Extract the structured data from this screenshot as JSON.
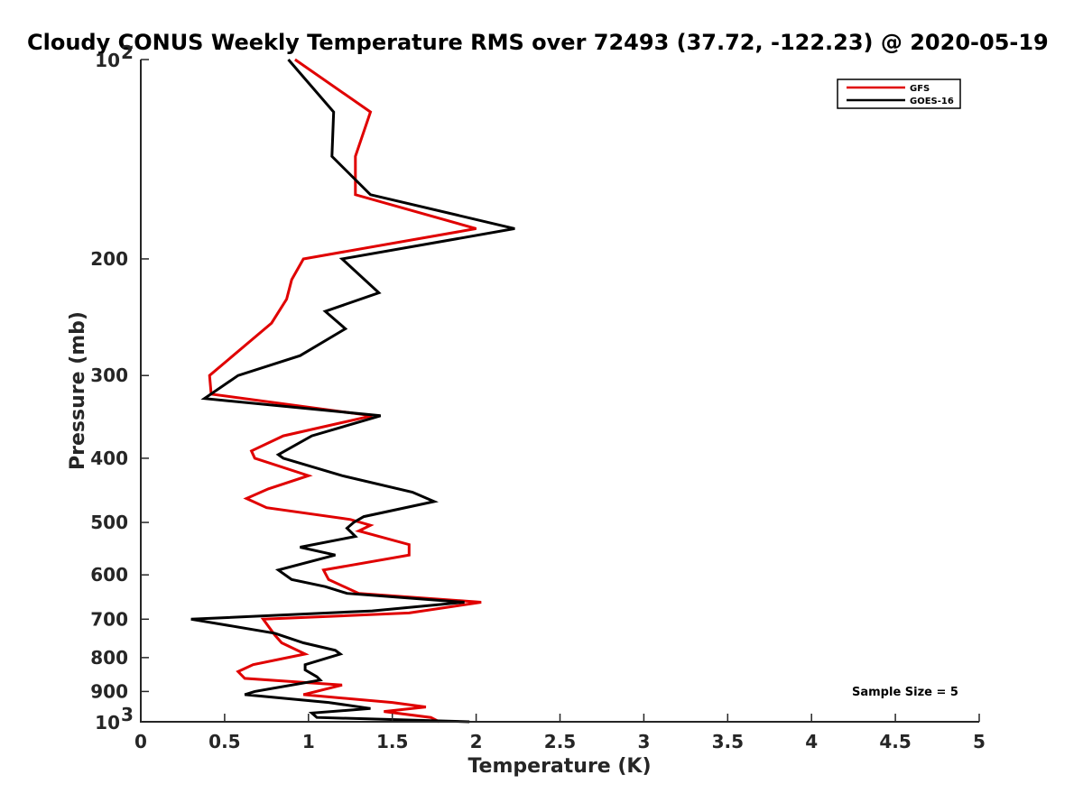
{
  "chart_data": {
    "type": "line",
    "title": "Cloudy CONUS Weekly Temperature RMS over 72493 (37.72, -122.23) @ 2020-05-19",
    "xlabel": "Temperature (K)",
    "ylabel": "Pressure (mb)",
    "xlim": [
      0,
      5
    ],
    "ylim": [
      100,
      1000
    ],
    "y_scale": "log",
    "y_reversed": true,
    "grid": false,
    "legend_position": "top-right",
    "x_ticks": [
      {
        "value": 0,
        "label": "0"
      },
      {
        "value": 0.5,
        "label": "0.5"
      },
      {
        "value": 1,
        "label": "1"
      },
      {
        "value": 1.5,
        "label": "1.5"
      },
      {
        "value": 2,
        "label": "2"
      },
      {
        "value": 2.5,
        "label": "2.5"
      },
      {
        "value": 3,
        "label": "3"
      },
      {
        "value": 3.5,
        "label": "3.5"
      },
      {
        "value": 4,
        "label": "4"
      },
      {
        "value": 4.5,
        "label": "4.5"
      },
      {
        "value": 5,
        "label": "5"
      }
    ],
    "y_ticks": [
      {
        "value": 100,
        "label": "10",
        "exp": "2"
      },
      {
        "value": 200,
        "label": "200"
      },
      {
        "value": 300,
        "label": "300"
      },
      {
        "value": 400,
        "label": "400"
      },
      {
        "value": 500,
        "label": "500"
      },
      {
        "value": 600,
        "label": "600"
      },
      {
        "value": 700,
        "label": "700"
      },
      {
        "value": 800,
        "label": "800"
      },
      {
        "value": 900,
        "label": "900"
      },
      {
        "value": 1000,
        "label": "10",
        "exp": "3"
      }
    ],
    "annotation": "Sample Size = 5",
    "series": [
      {
        "name": "GFS",
        "color": "#e00000",
        "points": [
          [
            0.92,
            100
          ],
          [
            1.37,
            120
          ],
          [
            1.28,
            140
          ],
          [
            1.28,
            160
          ],
          [
            2.0,
            180
          ],
          [
            0.97,
            200
          ],
          [
            0.9,
            215
          ],
          [
            0.87,
            230
          ],
          [
            0.78,
            250
          ],
          [
            0.41,
            300
          ],
          [
            0.42,
            320
          ],
          [
            1.38,
            345
          ],
          [
            0.85,
            370
          ],
          [
            0.66,
            390
          ],
          [
            0.68,
            400
          ],
          [
            1.0,
            425
          ],
          [
            0.76,
            445
          ],
          [
            0.63,
            460
          ],
          [
            0.75,
            475
          ],
          [
            1.25,
            495
          ],
          [
            1.37,
            505
          ],
          [
            1.3,
            515
          ],
          [
            1.6,
            540
          ],
          [
            1.6,
            560
          ],
          [
            1.09,
            590
          ],
          [
            1.12,
            610
          ],
          [
            1.3,
            640
          ],
          [
            2.03,
            660
          ],
          [
            1.6,
            685
          ],
          [
            0.73,
            700
          ],
          [
            0.8,
            740
          ],
          [
            0.84,
            760
          ],
          [
            0.98,
            790
          ],
          [
            0.67,
            820
          ],
          [
            0.58,
            840
          ],
          [
            0.62,
            860
          ],
          [
            1.2,
            880
          ],
          [
            0.97,
            910
          ],
          [
            1.5,
            935
          ],
          [
            1.7,
            950
          ],
          [
            1.45,
            965
          ],
          [
            1.73,
            985
          ],
          [
            1.78,
            1000
          ]
        ]
      },
      {
        "name": "GOES-16",
        "color": "#000000",
        "points": [
          [
            0.88,
            100
          ],
          [
            1.15,
            120
          ],
          [
            1.14,
            140
          ],
          [
            1.37,
            160
          ],
          [
            2.23,
            180
          ],
          [
            1.2,
            200
          ],
          [
            1.42,
            225
          ],
          [
            1.1,
            240
          ],
          [
            1.22,
            255
          ],
          [
            0.95,
            280
          ],
          [
            0.58,
            300
          ],
          [
            0.38,
            325
          ],
          [
            1.43,
            345
          ],
          [
            1.02,
            370
          ],
          [
            0.82,
            395
          ],
          [
            0.85,
            400
          ],
          [
            1.2,
            425
          ],
          [
            1.62,
            450
          ],
          [
            1.75,
            465
          ],
          [
            1.33,
            490
          ],
          [
            1.27,
            500
          ],
          [
            1.23,
            510
          ],
          [
            1.28,
            525
          ],
          [
            0.95,
            545
          ],
          [
            1.16,
            560
          ],
          [
            0.82,
            590
          ],
          [
            0.9,
            610
          ],
          [
            1.1,
            625
          ],
          [
            1.23,
            640
          ],
          [
            1.93,
            660
          ],
          [
            1.38,
            680
          ],
          [
            0.3,
            700
          ],
          [
            0.8,
            735
          ],
          [
            0.97,
            760
          ],
          [
            1.16,
            780
          ],
          [
            1.19,
            790
          ],
          [
            0.98,
            820
          ],
          [
            0.98,
            835
          ],
          [
            1.05,
            855
          ],
          [
            1.07,
            865
          ],
          [
            0.68,
            900
          ],
          [
            0.62,
            910
          ],
          [
            1.12,
            935
          ],
          [
            1.37,
            955
          ],
          [
            1.02,
            970
          ],
          [
            1.05,
            985
          ],
          [
            1.96,
            1000
          ]
        ]
      }
    ]
  }
}
